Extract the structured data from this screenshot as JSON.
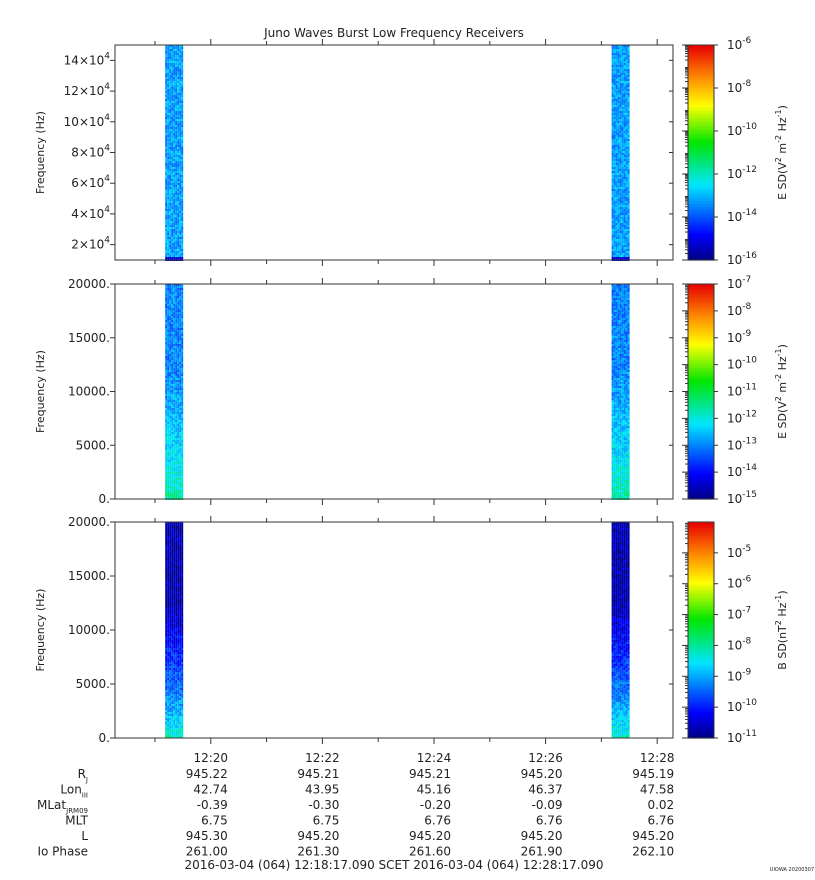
{
  "figure": {
    "title": "Juno Waves Burst Low Frequency Receivers",
    "time_range_label": "2016-03-04 (064) 12:18:17.090    SCET    2016-03-04 (064) 12:28:17.090",
    "stamp": "UIOWA 20200307"
  },
  "chart_data": [
    {
      "type": "heatmap",
      "title": "Juno Waves Burst Low Frequency Receivers",
      "xlabel": "",
      "ylabel": "Frequency (Hz)",
      "ylim": [
        10000,
        150000
      ],
      "yticks": [
        20000,
        40000,
        60000,
        80000,
        100000,
        120000,
        140000
      ],
      "ytick_mantissas": [
        "2×10",
        "4×10",
        "6×10",
        "8×10",
        "10×10",
        "12×10",
        "14×10"
      ],
      "ytick_exponent": "4",
      "colorbar": {
        "label_base": "E SD(V",
        "label_sup1": "2",
        "label_mid": " m",
        "label_sup2": "-2",
        "label_mid2": " Hz",
        "label_sup3": "-1",
        "label_end": ")",
        "scale": "log",
        "range_exp": [
          -16,
          -6
        ],
        "tick_exps": [
          "-6",
          "-8",
          "-10",
          "-12",
          "-14",
          "-16"
        ]
      },
      "bursts": [
        {
          "start": "12:19:11",
          "end": "12:19:30",
          "low_level_exp": -13.7,
          "high_level_exp": -13.2
        },
        {
          "start": "12:27:11",
          "end": "12:27:30",
          "low_level_exp": -13.7,
          "high_level_exp": -13.2
        }
      ]
    },
    {
      "type": "heatmap",
      "xlabel": "",
      "ylabel": "Frequency (Hz)",
      "ylim": [
        0,
        20000
      ],
      "yticks": [
        0,
        5000,
        10000,
        15000,
        20000
      ],
      "ytick_labels": [
        "0.",
        "5000.",
        "10000.",
        "15000.",
        "20000."
      ],
      "colorbar": {
        "label_base": "E SD(V",
        "label_sup1": "2",
        "label_mid": " m",
        "label_sup2": "-2",
        "label_mid2": " Hz",
        "label_sup3": "-1",
        "label_end": ")",
        "scale": "log",
        "range_exp": [
          -15,
          -7
        ],
        "tick_exps": [
          "-7",
          "-8",
          "-9",
          "-10",
          "-11",
          "-12",
          "-13",
          "-14",
          "-15"
        ]
      },
      "bursts": [
        {
          "start": "12:19:11",
          "end": "12:19:30",
          "low_level_exp": -11.5,
          "high_level_exp": -13.0
        },
        {
          "start": "12:27:11",
          "end": "12:27:30",
          "low_level_exp": -11.5,
          "high_level_exp": -13.0
        }
      ]
    },
    {
      "type": "heatmap",
      "xlabel": "",
      "ylabel": "Frequency (Hz)",
      "ylim": [
        0,
        20000
      ],
      "yticks": [
        0,
        5000,
        10000,
        15000,
        20000
      ],
      "ytick_labels": [
        "0.",
        "5000.",
        "10000.",
        "15000.",
        "20000."
      ],
      "colorbar": {
        "label_base": "B SD(nT",
        "label_sup1": "2",
        "label_mid": " Hz",
        "label_sup2": "-1",
        "label_mid2": "",
        "label_sup3": "",
        "label_end": ")",
        "scale": "log",
        "range_exp": [
          -11,
          -4
        ],
        "tick_exps": [
          "-5",
          "-6",
          "-7",
          "-8",
          "-9",
          "-10",
          "-11"
        ]
      },
      "bursts": [
        {
          "start": "12:19:11",
          "end": "12:19:30",
          "low_level_exp": -8.0,
          "high_level_exp": -10.7
        },
        {
          "start": "12:27:11",
          "end": "12:27:30",
          "low_level_exp": -8.0,
          "high_level_exp": -10.7
        }
      ]
    }
  ],
  "x_axis": {
    "range": [
      "12:18:17",
      "12:28:17"
    ],
    "tick_labels": [
      "12:20",
      "12:22",
      "12:24",
      "12:26",
      "12:28"
    ],
    "tick_times": [
      "12:20:00",
      "12:22:00",
      "12:24:00",
      "12:26:00",
      "12:28:00"
    ],
    "minor_times": [
      "12:19:00",
      "12:21:00",
      "12:23:00",
      "12:25:00",
      "12:27:00"
    ]
  },
  "ephemeris": {
    "rows": [
      {
        "label": "R",
        "sub": "J",
        "values": [
          "945.22",
          "945.21",
          "945.21",
          "945.20",
          "945.19"
        ]
      },
      {
        "label": "Lon",
        "sub": "III",
        "values": [
          "42.74",
          "43.95",
          "45.16",
          "46.37",
          "47.58"
        ]
      },
      {
        "label": "MLat",
        "sub": "JRM09",
        "values": [
          "-0.39",
          "-0.30",
          "-0.20",
          "-0.09",
          "0.02"
        ]
      },
      {
        "label": "MLT",
        "sub": "",
        "values": [
          "6.75",
          "6.75",
          "6.76",
          "6.76",
          "6.76"
        ]
      },
      {
        "label": "L",
        "sub": "",
        "values": [
          "945.30",
          "945.20",
          "945.20",
          "945.20",
          "945.20"
        ]
      },
      {
        "label": "Io Phase",
        "sub": "",
        "values": [
          "261.00",
          "261.30",
          "261.60",
          "261.90",
          "262.10"
        ]
      }
    ]
  }
}
